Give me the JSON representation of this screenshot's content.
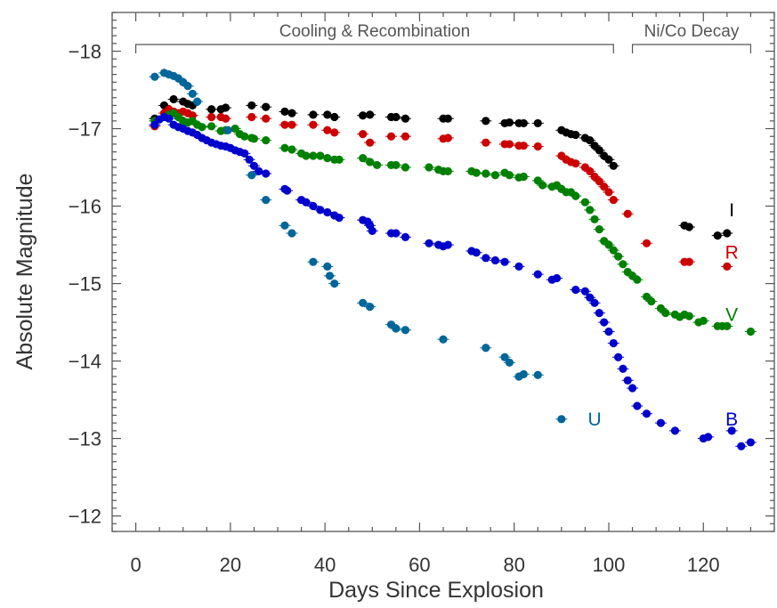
{
  "chart_data": {
    "type": "scatter",
    "xlabel": "Days Since Explosion",
    "ylabel": "Absolute Magnitude",
    "xlim": [
      -5,
      135
    ],
    "ylim": [
      -11.8,
      -18.5
    ],
    "y_axis_inverted": true,
    "x_ticks": [
      {
        "value": 0,
        "label": "0"
      },
      {
        "value": 20,
        "label": "20"
      },
      {
        "value": 40,
        "label": "40"
      },
      {
        "value": 60,
        "label": "60"
      },
      {
        "value": 80,
        "label": "80"
      },
      {
        "value": 100,
        "label": "100"
      },
      {
        "value": 120,
        "label": "120"
      }
    ],
    "y_ticks": [
      {
        "value": -18,
        "label": "−18"
      },
      {
        "value": -17,
        "label": "−17"
      },
      {
        "value": -16,
        "label": "−16"
      },
      {
        "value": -15,
        "label": "−15"
      },
      {
        "value": -14,
        "label": "−14"
      },
      {
        "value": -13,
        "label": "−13"
      },
      {
        "value": -12,
        "label": "−12"
      }
    ],
    "grid": false,
    "phases": [
      {
        "label": "Cooling & Recombination",
        "x_start": 0,
        "x_end": 101
      },
      {
        "label": "Ni/Co Decay",
        "x_start": 105,
        "x_end": 130
      }
    ],
    "series": [
      {
        "name": "I",
        "color": "#000000",
        "label_at": [
          126,
          -15.95
        ],
        "points": [
          [
            4,
            -17.13
          ],
          [
            6,
            -17.3
          ],
          [
            8,
            -17.38
          ],
          [
            10,
            -17.35
          ],
          [
            11,
            -17.32
          ],
          [
            12,
            -17.3
          ],
          [
            16,
            -17.25
          ],
          [
            18,
            -17.25
          ],
          [
            19,
            -17.27
          ],
          [
            24.5,
            -17.3
          ],
          [
            27.5,
            -17.28
          ],
          [
            31.5,
            -17.22
          ],
          [
            33,
            -17.2
          ],
          [
            37.5,
            -17.18
          ],
          [
            40.5,
            -17.18
          ],
          [
            42,
            -17.15
          ],
          [
            48,
            -17.17
          ],
          [
            49.5,
            -17.18
          ],
          [
            54,
            -17.15
          ],
          [
            55,
            -17.15
          ],
          [
            57,
            -17.13
          ],
          [
            65,
            -17.13
          ],
          [
            66,
            -17.13
          ],
          [
            74,
            -17.1
          ],
          [
            78,
            -17.07
          ],
          [
            79,
            -17.08
          ],
          [
            81,
            -17.07
          ],
          [
            82,
            -17.07
          ],
          [
            85,
            -17.07
          ],
          [
            90,
            -16.98
          ],
          [
            91,
            -16.95
          ],
          [
            92,
            -16.93
          ],
          [
            93,
            -16.92
          ],
          [
            95,
            -16.88
          ],
          [
            96,
            -16.85
          ],
          [
            97,
            -16.78
          ],
          [
            98,
            -16.72
          ],
          [
            99,
            -16.65
          ],
          [
            100,
            -16.6
          ],
          [
            101,
            -16.52
          ],
          [
            116,
            -15.75
          ],
          [
            117,
            -15.73
          ],
          [
            123,
            -15.62
          ],
          [
            125,
            -15.65
          ]
        ]
      },
      {
        "name": "R",
        "color": "#cc0000",
        "label_at": [
          126,
          -15.4
        ],
        "points": [
          [
            4,
            -17.03
          ],
          [
            6,
            -17.2
          ],
          [
            7,
            -17.25
          ],
          [
            8,
            -17.22
          ],
          [
            9,
            -17.2
          ],
          [
            10,
            -17.22
          ],
          [
            11,
            -17.2
          ],
          [
            12,
            -17.17
          ],
          [
            16,
            -17.15
          ],
          [
            18,
            -17.15
          ],
          [
            19,
            -17.13
          ],
          [
            24.5,
            -17.15
          ],
          [
            27.5,
            -17.13
          ],
          [
            31.5,
            -17.05
          ],
          [
            33,
            -17.05
          ],
          [
            37.5,
            -17.05
          ],
          [
            40.5,
            -16.98
          ],
          [
            42,
            -16.95
          ],
          [
            48,
            -16.93
          ],
          [
            49.5,
            -16.82
          ],
          [
            54,
            -16.9
          ],
          [
            57,
            -16.9
          ],
          [
            65,
            -16.87
          ],
          [
            66,
            -16.88
          ],
          [
            74,
            -16.82
          ],
          [
            78,
            -16.8
          ],
          [
            79,
            -16.8
          ],
          [
            81,
            -16.78
          ],
          [
            82,
            -16.78
          ],
          [
            85,
            -16.77
          ],
          [
            90,
            -16.65
          ],
          [
            91,
            -16.6
          ],
          [
            92,
            -16.57
          ],
          [
            93,
            -16.55
          ],
          [
            95,
            -16.5
          ],
          [
            96,
            -16.45
          ],
          [
            97,
            -16.38
          ],
          [
            98,
            -16.32
          ],
          [
            99,
            -16.25
          ],
          [
            100,
            -16.18
          ],
          [
            101,
            -16.08
          ],
          [
            104,
            -15.9
          ],
          [
            108,
            -15.52
          ],
          [
            116,
            -15.28
          ],
          [
            117,
            -15.28
          ],
          [
            125,
            -15.22
          ]
        ]
      },
      {
        "name": "V",
        "color": "#008000",
        "label_at": [
          126,
          -14.6
        ],
        "points": [
          [
            4,
            -17.1
          ],
          [
            6,
            -17.15
          ],
          [
            7,
            -17.18
          ],
          [
            8,
            -17.2
          ],
          [
            9,
            -17.15
          ],
          [
            10,
            -17.1
          ],
          [
            11,
            -17.08
          ],
          [
            12,
            -17.1
          ],
          [
            13,
            -17.05
          ],
          [
            14,
            -17.02
          ],
          [
            16,
            -17.03
          ],
          [
            18,
            -16.97
          ],
          [
            19,
            -16.98
          ],
          [
            21,
            -17.0
          ],
          [
            22,
            -16.93
          ],
          [
            23,
            -16.9
          ],
          [
            24.5,
            -16.88
          ],
          [
            25,
            -16.87
          ],
          [
            27.5,
            -16.85
          ],
          [
            31.5,
            -16.75
          ],
          [
            33,
            -16.73
          ],
          [
            35,
            -16.68
          ],
          [
            36,
            -16.65
          ],
          [
            37.5,
            -16.65
          ],
          [
            39,
            -16.65
          ],
          [
            40.5,
            -16.62
          ],
          [
            42,
            -16.6
          ],
          [
            43,
            -16.6
          ],
          [
            48,
            -16.62
          ],
          [
            49.5,
            -16.57
          ],
          [
            51,
            -16.53
          ],
          [
            54,
            -16.53
          ],
          [
            55,
            -16.53
          ],
          [
            57,
            -16.5
          ],
          [
            62,
            -16.5
          ],
          [
            64,
            -16.47
          ],
          [
            65,
            -16.45
          ],
          [
            66,
            -16.45
          ],
          [
            71,
            -16.45
          ],
          [
            72,
            -16.43
          ],
          [
            74,
            -16.42
          ],
          [
            76,
            -16.4
          ],
          [
            78,
            -16.43
          ],
          [
            79,
            -16.4
          ],
          [
            81,
            -16.37
          ],
          [
            82,
            -16.38
          ],
          [
            85,
            -16.33
          ],
          [
            86,
            -16.27
          ],
          [
            88,
            -16.25
          ],
          [
            89,
            -16.27
          ],
          [
            90,
            -16.22
          ],
          [
            91,
            -16.18
          ],
          [
            92,
            -16.18
          ],
          [
            93,
            -16.13
          ],
          [
            95,
            -16.05
          ],
          [
            96,
            -15.95
          ],
          [
            97,
            -15.83
          ],
          [
            98,
            -15.7
          ],
          [
            99,
            -15.55
          ],
          [
            100,
            -15.5
          ],
          [
            101,
            -15.43
          ],
          [
            102,
            -15.35
          ],
          [
            103,
            -15.25
          ],
          [
            104,
            -15.15
          ],
          [
            105,
            -15.1
          ],
          [
            106,
            -15.05
          ],
          [
            108,
            -14.83
          ],
          [
            109,
            -14.77
          ],
          [
            111,
            -14.68
          ],
          [
            112,
            -14.62
          ],
          [
            114,
            -14.6
          ],
          [
            115,
            -14.57
          ],
          [
            116,
            -14.6
          ],
          [
            117,
            -14.58
          ],
          [
            119,
            -14.5
          ],
          [
            120,
            -14.52
          ],
          [
            123,
            -14.45
          ],
          [
            124,
            -14.45
          ],
          [
            125,
            -14.45
          ],
          [
            130,
            -14.38
          ]
        ]
      },
      {
        "name": "B",
        "color": "#0000cc",
        "label_at": [
          126,
          -13.25
        ],
        "points": [
          [
            4,
            -17.05
          ],
          [
            5,
            -17.12
          ],
          [
            6,
            -17.15
          ],
          [
            7,
            -17.13
          ],
          [
            8,
            -17.05
          ],
          [
            9,
            -17.02
          ],
          [
            10,
            -17.0
          ],
          [
            11,
            -16.97
          ],
          [
            12,
            -16.95
          ],
          [
            13,
            -16.92
          ],
          [
            14,
            -16.88
          ],
          [
            15,
            -16.85
          ],
          [
            16,
            -16.82
          ],
          [
            17,
            -16.8
          ],
          [
            18,
            -16.78
          ],
          [
            19,
            -16.77
          ],
          [
            20,
            -16.75
          ],
          [
            21,
            -16.72
          ],
          [
            22,
            -16.7
          ],
          [
            23,
            -16.68
          ],
          [
            24,
            -16.6
          ],
          [
            25,
            -16.52
          ],
          [
            26,
            -16.45
          ],
          [
            27.5,
            -16.42
          ],
          [
            31.5,
            -16.22
          ],
          [
            32,
            -16.2
          ],
          [
            35,
            -16.08
          ],
          [
            36,
            -16.05
          ],
          [
            37.5,
            -16.0
          ],
          [
            39,
            -15.95
          ],
          [
            40.5,
            -15.92
          ],
          [
            42,
            -15.88
          ],
          [
            43,
            -15.85
          ],
          [
            48,
            -15.82
          ],
          [
            49,
            -15.8
          ],
          [
            49.5,
            -15.75
          ],
          [
            50,
            -15.68
          ],
          [
            54,
            -15.65
          ],
          [
            55,
            -15.65
          ],
          [
            57,
            -15.6
          ],
          [
            62,
            -15.52
          ],
          [
            64,
            -15.5
          ],
          [
            65,
            -15.48
          ],
          [
            66,
            -15.5
          ],
          [
            71,
            -15.42
          ],
          [
            72,
            -15.4
          ],
          [
            74,
            -15.33
          ],
          [
            76,
            -15.3
          ],
          [
            78,
            -15.28
          ],
          [
            81,
            -15.22
          ],
          [
            85,
            -15.12
          ],
          [
            88,
            -15.05
          ],
          [
            89,
            -15.07
          ],
          [
            93,
            -14.92
          ],
          [
            95,
            -14.9
          ],
          [
            96,
            -14.82
          ],
          [
            97,
            -14.75
          ],
          [
            98,
            -14.62
          ],
          [
            99,
            -14.5
          ],
          [
            100,
            -14.38
          ],
          [
            101,
            -14.23
          ],
          [
            102,
            -14.05
          ],
          [
            103,
            -13.9
          ],
          [
            104,
            -13.75
          ],
          [
            105,
            -13.65
          ],
          [
            106,
            -13.42
          ],
          [
            108,
            -13.32
          ],
          [
            111,
            -13.2
          ],
          [
            114,
            -13.1
          ],
          [
            120,
            -13.0
          ],
          [
            121,
            -13.02
          ],
          [
            126,
            -13.1
          ],
          [
            128,
            -12.9
          ],
          [
            130,
            -12.95
          ]
        ]
      },
      {
        "name": "U",
        "color": "#006699",
        "label_at": [
          97,
          -13.25
        ],
        "points": [
          [
            4,
            -17.67
          ],
          [
            6,
            -17.72
          ],
          [
            7,
            -17.7
          ],
          [
            8,
            -17.68
          ],
          [
            9,
            -17.65
          ],
          [
            10,
            -17.6
          ],
          [
            11,
            -17.55
          ],
          [
            12,
            -17.45
          ],
          [
            13,
            -17.35
          ],
          [
            19.5,
            -16.98
          ],
          [
            24.5,
            -16.4
          ],
          [
            27.5,
            -16.08
          ],
          [
            31.5,
            -15.75
          ],
          [
            33,
            -15.65
          ],
          [
            37.5,
            -15.28
          ],
          [
            40.5,
            -15.22
          ],
          [
            41,
            -15.1
          ],
          [
            42,
            -15.0
          ],
          [
            48,
            -14.75
          ],
          [
            49.5,
            -14.7
          ],
          [
            54,
            -14.47
          ],
          [
            55,
            -14.42
          ],
          [
            57,
            -14.4
          ],
          [
            65,
            -14.28
          ],
          [
            74,
            -14.17
          ],
          [
            78,
            -14.05
          ],
          [
            79,
            -13.98
          ],
          [
            81,
            -13.8
          ],
          [
            82,
            -13.83
          ],
          [
            85,
            -13.82
          ],
          [
            90,
            -13.25
          ]
        ]
      }
    ]
  }
}
